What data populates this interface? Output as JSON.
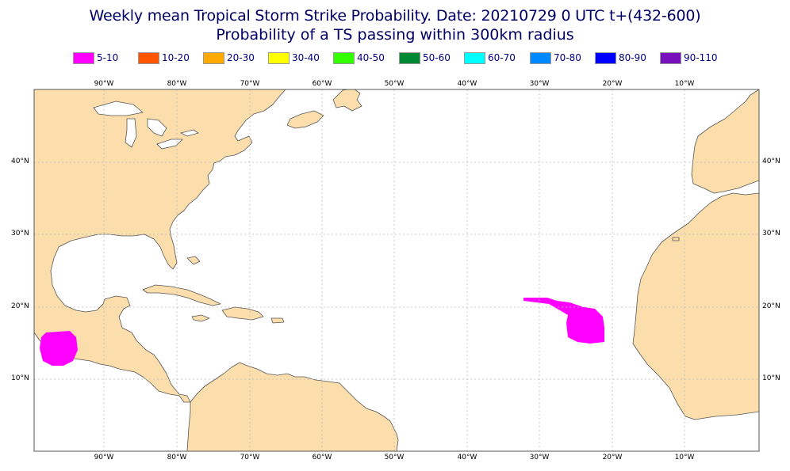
{
  "title_line1": "Weekly mean Tropical Storm Strike Probability. Date: 20210729  0 UTC    t+(432-600)",
  "title_line2": "Probability of a TS passing within  300km radius",
  "legend": [
    {
      "label": "5-10",
      "color": "#ff00ff"
    },
    {
      "label": "10-20",
      "color": "#ff5500"
    },
    {
      "label": "20-30",
      "color": "#ffaa00"
    },
    {
      "label": "30-40",
      "color": "#ffff00"
    },
    {
      "label": "40-50",
      "color": "#33ff00"
    },
    {
      "label": "50-60",
      "color": "#008833"
    },
    {
      "label": "60-70",
      "color": "#00ffff"
    },
    {
      "label": "70-80",
      "color": "#0088ff"
    },
    {
      "label": "80-90",
      "color": "#0000ff"
    },
    {
      "label": "90-110",
      "color": "#7711bb"
    }
  ],
  "lon_labels": [
    "90°W",
    "80°W",
    "70°W",
    "60°W",
    "50°W",
    "40°W",
    "30°W",
    "20°W",
    "10°W"
  ],
  "lat_labels": [
    "40°N",
    "30°N",
    "20°N",
    "10°N"
  ],
  "colors": {
    "land": "#fbdeab",
    "coast": "#555555",
    "grid": "#bbbbbb",
    "probability_5_10": "#ff00ff"
  }
}
